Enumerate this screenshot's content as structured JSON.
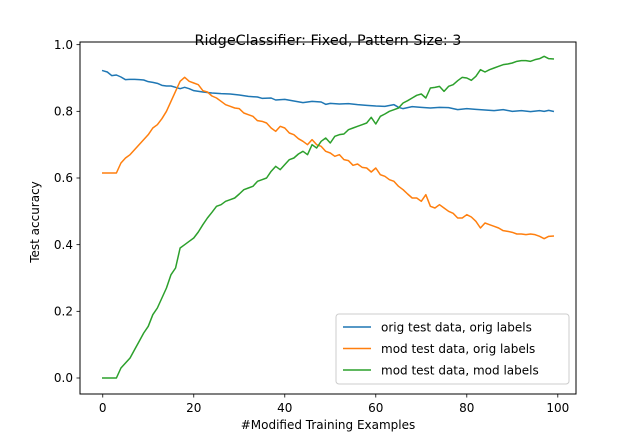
{
  "chart_data": {
    "type": "line",
    "title": "RidgeClassifier: Fixed, Pattern Size: 3",
    "xlabel": "#Modified Training Examples",
    "ylabel": "Test accuracy",
    "xlim": [
      -5,
      104
    ],
    "ylim": [
      -0.048,
      1.008
    ],
    "xticks": [
      0,
      20,
      40,
      60,
      80,
      100
    ],
    "xtick_labels": [
      "0",
      "20",
      "40",
      "60",
      "80",
      "100"
    ],
    "yticks": [
      0.0,
      0.2,
      0.4,
      0.6,
      0.8,
      1.0
    ],
    "ytick_labels": [
      "0.0",
      "0.2",
      "0.4",
      "0.6",
      "0.8",
      "1.0"
    ],
    "grid": false,
    "legend_position": "bottom-right",
    "series": [
      {
        "name": "orig test data, orig labels",
        "color": "#1f77b4",
        "points": [
          [
            0,
            0.922
          ],
          [
            1,
            0.918
          ],
          [
            2,
            0.907
          ],
          [
            3,
            0.909
          ],
          [
            4,
            0.903
          ],
          [
            5,
            0.895
          ],
          [
            6,
            0.896
          ],
          [
            7,
            0.896
          ],
          [
            8,
            0.895
          ],
          [
            9,
            0.894
          ],
          [
            10,
            0.889
          ],
          [
            11,
            0.887
          ],
          [
            12,
            0.884
          ],
          [
            13,
            0.878
          ],
          [
            14,
            0.876
          ],
          [
            15,
            0.876
          ],
          [
            16,
            0.872
          ],
          [
            17,
            0.868
          ],
          [
            18,
            0.872
          ],
          [
            19,
            0.868
          ],
          [
            20,
            0.862
          ],
          [
            22,
            0.858
          ],
          [
            24,
            0.855
          ],
          [
            26,
            0.853
          ],
          [
            28,
            0.852
          ],
          [
            30,
            0.849
          ],
          [
            32,
            0.845
          ],
          [
            34,
            0.843
          ],
          [
            35,
            0.839
          ],
          [
            37,
            0.84
          ],
          [
            38,
            0.834
          ],
          [
            40,
            0.836
          ],
          [
            42,
            0.831
          ],
          [
            44,
            0.826
          ],
          [
            46,
            0.83
          ],
          [
            48,
            0.828
          ],
          [
            49,
            0.821
          ],
          [
            50,
            0.824
          ],
          [
            52,
            0.822
          ],
          [
            54,
            0.823
          ],
          [
            56,
            0.82
          ],
          [
            58,
            0.818
          ],
          [
            60,
            0.816
          ],
          [
            62,
            0.815
          ],
          [
            64,
            0.82
          ],
          [
            65,
            0.812
          ],
          [
            66,
            0.808
          ],
          [
            68,
            0.814
          ],
          [
            70,
            0.812
          ],
          [
            72,
            0.81
          ],
          [
            74,
            0.812
          ],
          [
            76,
            0.811
          ],
          [
            78,
            0.805
          ],
          [
            80,
            0.808
          ],
          [
            82,
            0.806
          ],
          [
            84,
            0.804
          ],
          [
            86,
            0.802
          ],
          [
            88,
            0.805
          ],
          [
            90,
            0.8
          ],
          [
            92,
            0.802
          ],
          [
            94,
            0.799
          ],
          [
            96,
            0.802
          ],
          [
            97,
            0.8
          ],
          [
            98,
            0.803
          ],
          [
            99,
            0.8
          ]
        ]
      },
      {
        "name": "mod test data, orig labels",
        "color": "#ff7f0e",
        "points": [
          [
            0,
            0.615
          ],
          [
            1,
            0.615
          ],
          [
            2,
            0.615
          ],
          [
            3,
            0.615
          ],
          [
            4,
            0.645
          ],
          [
            5,
            0.66
          ],
          [
            6,
            0.67
          ],
          [
            7,
            0.685
          ],
          [
            8,
            0.7
          ],
          [
            9,
            0.715
          ],
          [
            10,
            0.73
          ],
          [
            11,
            0.75
          ],
          [
            12,
            0.76
          ],
          [
            13,
            0.778
          ],
          [
            14,
            0.8
          ],
          [
            15,
            0.83
          ],
          [
            16,
            0.86
          ],
          [
            17,
            0.89
          ],
          [
            18,
            0.902
          ],
          [
            19,
            0.89
          ],
          [
            20,
            0.885
          ],
          [
            21,
            0.88
          ],
          [
            22,
            0.862
          ],
          [
            23,
            0.858
          ],
          [
            24,
            0.846
          ],
          [
            25,
            0.84
          ],
          [
            26,
            0.83
          ],
          [
            27,
            0.82
          ],
          [
            28,
            0.815
          ],
          [
            29,
            0.81
          ],
          [
            30,
            0.808
          ],
          [
            31,
            0.795
          ],
          [
            32,
            0.79
          ],
          [
            33,
            0.785
          ],
          [
            34,
            0.772
          ],
          [
            35,
            0.77
          ],
          [
            36,
            0.765
          ],
          [
            37,
            0.75
          ],
          [
            38,
            0.74
          ],
          [
            39,
            0.755
          ],
          [
            40,
            0.75
          ],
          [
            41,
            0.735
          ],
          [
            42,
            0.73
          ],
          [
            43,
            0.718
          ],
          [
            44,
            0.71
          ],
          [
            45,
            0.7
          ],
          [
            46,
            0.715
          ],
          [
            47,
            0.7
          ],
          [
            48,
            0.695
          ],
          [
            49,
            0.68
          ],
          [
            50,
            0.675
          ],
          [
            51,
            0.665
          ],
          [
            52,
            0.67
          ],
          [
            53,
            0.655
          ],
          [
            54,
            0.652
          ],
          [
            55,
            0.638
          ],
          [
            56,
            0.642
          ],
          [
            57,
            0.632
          ],
          [
            58,
            0.63
          ],
          [
            59,
            0.618
          ],
          [
            60,
            0.63
          ],
          [
            61,
            0.61
          ],
          [
            62,
            0.605
          ],
          [
            63,
            0.595
          ],
          [
            64,
            0.59
          ],
          [
            65,
            0.575
          ],
          [
            66,
            0.565
          ],
          [
            67,
            0.552
          ],
          [
            68,
            0.54
          ],
          [
            69,
            0.54
          ],
          [
            70,
            0.53
          ],
          [
            71,
            0.55
          ],
          [
            72,
            0.515
          ],
          [
            73,
            0.51
          ],
          [
            74,
            0.52
          ],
          [
            75,
            0.51
          ],
          [
            76,
            0.5
          ],
          [
            77,
            0.494
          ],
          [
            78,
            0.48
          ],
          [
            79,
            0.48
          ],
          [
            80,
            0.49
          ],
          [
            81,
            0.483
          ],
          [
            82,
            0.47
          ],
          [
            83,
            0.45
          ],
          [
            84,
            0.465
          ],
          [
            85,
            0.46
          ],
          [
            86,
            0.455
          ],
          [
            87,
            0.45
          ],
          [
            88,
            0.442
          ],
          [
            89,
            0.44
          ],
          [
            90,
            0.437
          ],
          [
            91,
            0.432
          ],
          [
            92,
            0.432
          ],
          [
            93,
            0.43
          ],
          [
            94,
            0.432
          ],
          [
            95,
            0.43
          ],
          [
            96,
            0.425
          ],
          [
            97,
            0.418
          ],
          [
            98,
            0.425
          ],
          [
            99,
            0.426
          ]
        ]
      },
      {
        "name": "mod test data, mod labels",
        "color": "#2ca02c",
        "points": [
          [
            0,
            0.0
          ],
          [
            1,
            0.0
          ],
          [
            2,
            0.0
          ],
          [
            3,
            0.0
          ],
          [
            4,
            0.03
          ],
          [
            5,
            0.045
          ],
          [
            6,
            0.06
          ],
          [
            7,
            0.085
          ],
          [
            8,
            0.11
          ],
          [
            9,
            0.135
          ],
          [
            10,
            0.155
          ],
          [
            11,
            0.19
          ],
          [
            12,
            0.21
          ],
          [
            13,
            0.24
          ],
          [
            14,
            0.27
          ],
          [
            15,
            0.31
          ],
          [
            16,
            0.33
          ],
          [
            17,
            0.39
          ],
          [
            18,
            0.4
          ],
          [
            19,
            0.41
          ],
          [
            20,
            0.42
          ],
          [
            21,
            0.438
          ],
          [
            22,
            0.46
          ],
          [
            23,
            0.48
          ],
          [
            24,
            0.497
          ],
          [
            25,
            0.515
          ],
          [
            26,
            0.52
          ],
          [
            27,
            0.53
          ],
          [
            28,
            0.535
          ],
          [
            29,
            0.54
          ],
          [
            30,
            0.552
          ],
          [
            31,
            0.565
          ],
          [
            32,
            0.57
          ],
          [
            33,
            0.575
          ],
          [
            34,
            0.59
          ],
          [
            35,
            0.595
          ],
          [
            36,
            0.6
          ],
          [
            37,
            0.62
          ],
          [
            38,
            0.635
          ],
          [
            39,
            0.625
          ],
          [
            40,
            0.64
          ],
          [
            41,
            0.655
          ],
          [
            42,
            0.66
          ],
          [
            43,
            0.672
          ],
          [
            44,
            0.68
          ],
          [
            45,
            0.67
          ],
          [
            46,
            0.7
          ],
          [
            47,
            0.69
          ],
          [
            48,
            0.71
          ],
          [
            49,
            0.72
          ],
          [
            50,
            0.705
          ],
          [
            51,
            0.725
          ],
          [
            52,
            0.73
          ],
          [
            53,
            0.732
          ],
          [
            54,
            0.745
          ],
          [
            55,
            0.75
          ],
          [
            56,
            0.755
          ],
          [
            57,
            0.76
          ],
          [
            58,
            0.765
          ],
          [
            59,
            0.782
          ],
          [
            60,
            0.762
          ],
          [
            61,
            0.785
          ],
          [
            62,
            0.792
          ],
          [
            63,
            0.8
          ],
          [
            64,
            0.805
          ],
          [
            65,
            0.81
          ],
          [
            66,
            0.825
          ],
          [
            67,
            0.832
          ],
          [
            68,
            0.84
          ],
          [
            69,
            0.848
          ],
          [
            70,
            0.852
          ],
          [
            71,
            0.84
          ],
          [
            72,
            0.87
          ],
          [
            73,
            0.872
          ],
          [
            74,
            0.875
          ],
          [
            75,
            0.86
          ],
          [
            76,
            0.875
          ],
          [
            77,
            0.88
          ],
          [
            78,
            0.892
          ],
          [
            79,
            0.902
          ],
          [
            80,
            0.9
          ],
          [
            81,
            0.893
          ],
          [
            82,
            0.905
          ],
          [
            83,
            0.925
          ],
          [
            84,
            0.918
          ],
          [
            85,
            0.925
          ],
          [
            86,
            0.93
          ],
          [
            87,
            0.935
          ],
          [
            88,
            0.94
          ],
          [
            89,
            0.942
          ],
          [
            90,
            0.945
          ],
          [
            91,
            0.95
          ],
          [
            92,
            0.952
          ],
          [
            93,
            0.952
          ],
          [
            94,
            0.95
          ],
          [
            95,
            0.955
          ],
          [
            96,
            0.958
          ],
          [
            97,
            0.965
          ],
          [
            98,
            0.958
          ],
          [
            99,
            0.957
          ]
        ]
      }
    ]
  }
}
